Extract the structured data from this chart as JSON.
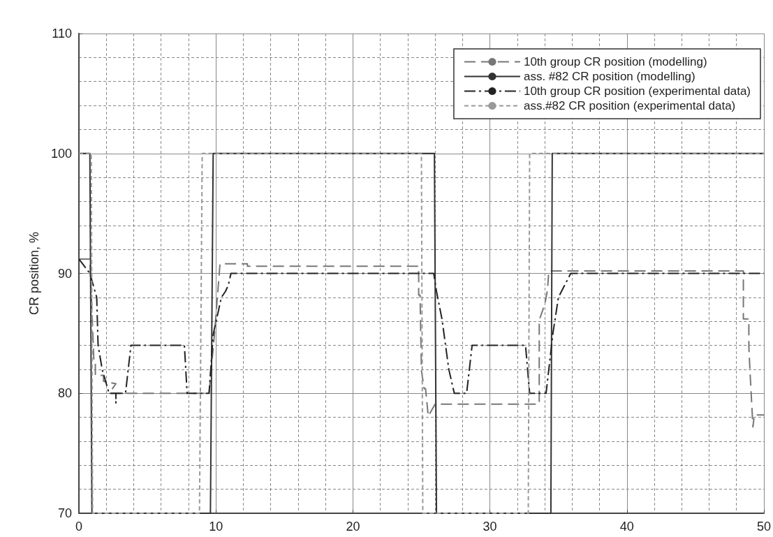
{
  "chart_data": {
    "type": "line",
    "ylabel": "CR position, %",
    "xlim": [
      0,
      50
    ],
    "xticks": [
      0,
      10,
      20,
      30,
      40,
      50
    ],
    "ylim": [
      70,
      110
    ],
    "yticks": [
      70,
      80,
      90,
      100,
      110
    ],
    "grid": true,
    "legend": "top right",
    "marker": "none",
    "series": [
      {
        "name": "10th group CR position (modelling)",
        "color": "#777777",
        "line_style": "dashed",
        "x": [
          0,
          0.8,
          1.1,
          1.1,
          1.2,
          1.2,
          1.8,
          1.8,
          2.7,
          2.2,
          9.5,
          9.9,
          10.3,
          12.3,
          12.3,
          24.2,
          24.8,
          24.8,
          24.9,
          25.0,
          25.2,
          25.3,
          25.5,
          26.0,
          33.6,
          33.6,
          34.0,
          34.2,
          34.3,
          48.5,
          48.5,
          48.9,
          48.9,
          49.0,
          49.2,
          49.3,
          50
        ],
        "values": [
          91.2,
          91.2,
          82.5,
          82.5,
          82.5,
          81.5,
          81.5,
          81,
          80.8,
          80,
          80,
          85,
          90.8,
          90.8,
          90.6,
          90.6,
          90.6,
          88.2,
          88.2,
          81.9,
          80.4,
          80.4,
          78.1,
          79.1,
          79.1,
          86.1,
          87.4,
          88.6,
          90.2,
          90.2,
          86.2,
          86.2,
          83.9,
          81.5,
          77.2,
          78.2,
          78.2
        ]
      },
      {
        "name": "ass. #82 CR position (modelling)",
        "color": "#333333",
        "line_style": "solid",
        "x": [
          0,
          0.8,
          0.95,
          9.6,
          9.8,
          25.95,
          26.1,
          34.45,
          34.55,
          50
        ],
        "values": [
          100,
          100,
          70,
          70,
          100,
          100,
          70,
          70,
          100,
          100
        ]
      },
      {
        "name": "10th group CR position (experimental data)",
        "color": "#222222",
        "line_style": "dashdot",
        "x": [
          0,
          0.8,
          1.3,
          1.4,
          1.7,
          2.2,
          2.7,
          2.7,
          2.7,
          3.4,
          3.8,
          7.7,
          7.9,
          9.5,
          9.8,
          10.4,
          10.7,
          10.9,
          11.1,
          25.9,
          26.1,
          26.5,
          27.0,
          27.4,
          28.3,
          28.7,
          32.6,
          32.9,
          34.1,
          34.3,
          34.6,
          35.0,
          35.9,
          50
        ],
        "values": [
          91.2,
          90,
          88,
          84,
          82,
          80,
          80,
          79.2,
          80,
          80,
          84,
          84,
          80,
          80,
          84.9,
          88,
          88.5,
          89,
          90,
          90,
          88.5,
          86.2,
          82,
          80,
          80,
          84,
          84,
          80,
          80,
          82,
          85,
          88,
          90,
          90
        ]
      },
      {
        "name": "ass.#82 CR position (experimental data)",
        "color": "#999999",
        "line_style": "dotted",
        "x": [
          0,
          0.9,
          1.0,
          8.8,
          9.0,
          25.0,
          25.1,
          32.8,
          32.9,
          50
        ],
        "values": [
          100,
          100,
          70,
          70,
          100,
          100,
          70,
          70,
          100,
          100
        ]
      }
    ]
  }
}
